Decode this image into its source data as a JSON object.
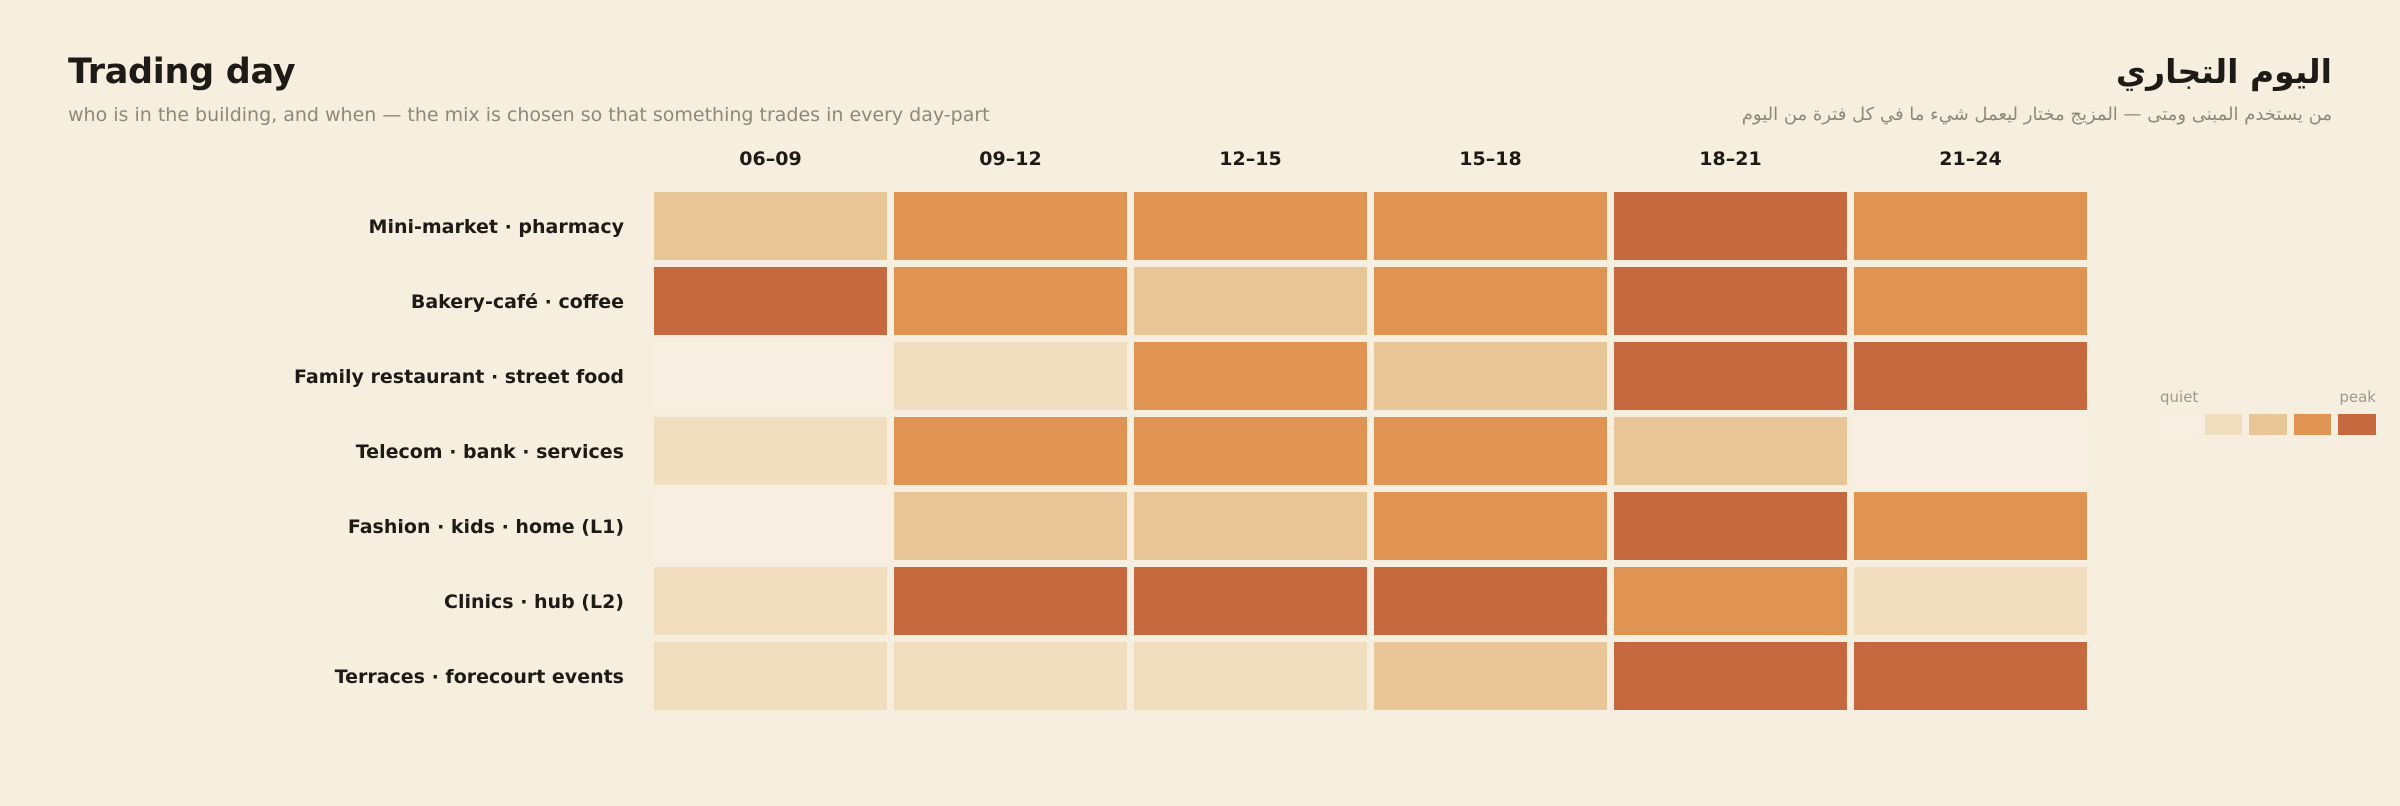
{
  "header": {
    "title_en": "Trading day",
    "subtitle_en": "who is in the building, and when — the mix is chosen so that something trades in every day-part",
    "title_ar": "اليوم التجاري",
    "subtitle_ar": "من يستخدم المبنى ومتى — المزيج مختار ليعمل شيء ما في كل فترة من اليوم"
  },
  "legend": {
    "low_label": "quiet",
    "high_label": "peak",
    "colors": [
      "#F8EEE2",
      "#F0DEBE",
      "#E8C698",
      "#DF9453",
      "#C6693E"
    ]
  },
  "chart_data": {
    "type": "heatmap",
    "title": "Trading day",
    "subtitle": "who is in the building, and when — the mix is chosen so that something trades in every day-part",
    "columns": [
      "06–09",
      "09–12",
      "12–15",
      "15–18",
      "18–21",
      "21–24"
    ],
    "rows": [
      "Mini-market · pharmacy",
      "Bakery-café · coffee",
      "Family restaurant · street food",
      "Telecom · bank · services",
      "Fashion · kids · home (L1)",
      "Clinics · hub (L2)",
      "Terraces · forecourt events"
    ],
    "levels": [
      [
        2,
        3,
        3,
        3,
        4,
        3
      ],
      [
        4,
        3,
        2,
        3,
        4,
        3
      ],
      [
        0,
        1,
        3,
        2,
        4,
        4
      ],
      [
        1,
        3,
        3,
        3,
        2,
        0
      ],
      [
        0,
        2,
        2,
        3,
        4,
        3
      ],
      [
        1,
        4,
        4,
        4,
        3,
        1
      ],
      [
        1,
        1,
        1,
        2,
        4,
        4
      ]
    ],
    "scale": {
      "min": 0,
      "max": 4,
      "low_label": "quiet",
      "high_label": "peak"
    },
    "legend_position": "right"
  }
}
